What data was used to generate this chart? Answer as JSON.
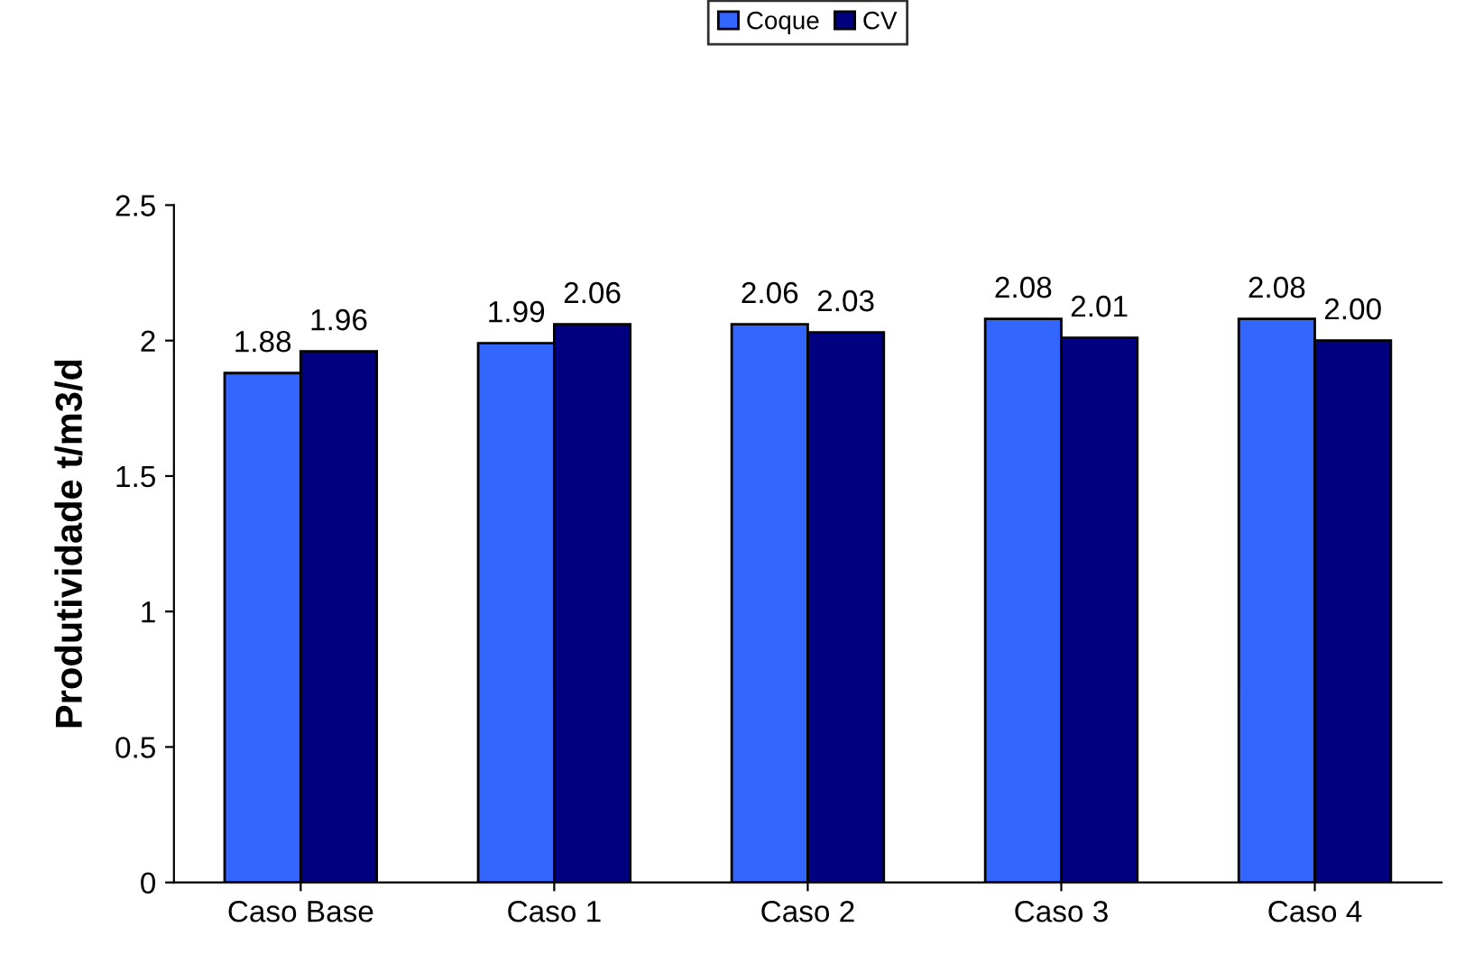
{
  "chart_data": {
    "type": "bar",
    "ylabel": "Produtividade t/m3/d",
    "categories": [
      "Caso Base",
      "Caso 1",
      "Caso 2",
      "Caso 3",
      "Caso 4"
    ],
    "series": [
      {
        "name": "Coque",
        "color": "#3366ff",
        "values": [
          1.88,
          1.99,
          2.06,
          2.08,
          2.08
        ],
        "value_labels": [
          "1.88",
          "1.99",
          "2.06",
          "2.08",
          "2.08"
        ]
      },
      {
        "name": "CV",
        "color": "#000080",
        "values": [
          1.96,
          2.06,
          2.03,
          2.01,
          2.0
        ],
        "value_labels": [
          "1.96",
          "2.06",
          "2.03",
          "2.01",
          "2.00"
        ]
      }
    ],
    "ylim": [
      0,
      2.5
    ],
    "yticks": [
      0,
      0.5,
      1,
      1.5,
      2,
      2.5
    ],
    "grid": false,
    "legend": "top"
  }
}
